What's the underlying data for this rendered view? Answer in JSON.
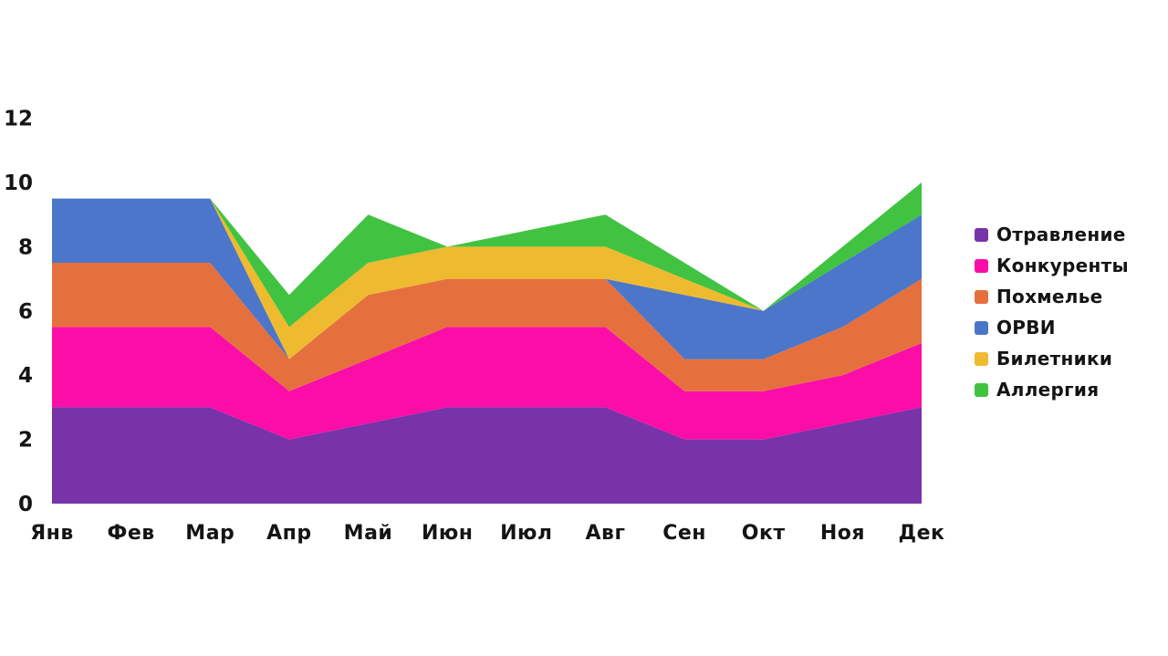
{
  "chart_data": {
    "type": "area",
    "stacked": true,
    "title": "",
    "xlabel": "",
    "ylabel": "",
    "categories": [
      "Янв",
      "Фев",
      "Мар",
      "Апр",
      "Май",
      "Июн",
      "Июл",
      "Авг",
      "Сен",
      "Окт",
      "Ноя",
      "Дек"
    ],
    "series": [
      {
        "name": "Отравление",
        "color": "#7833A8",
        "values": [
          3,
          3,
          3,
          2,
          2.5,
          3,
          3,
          3,
          2,
          2,
          2.5,
          3
        ]
      },
      {
        "name": "Конкуренты",
        "color": "#FB0DA8",
        "values": [
          2.5,
          2.5,
          2.5,
          1.5,
          2,
          2.5,
          2.5,
          2.5,
          1.5,
          1.5,
          1.5,
          2
        ]
      },
      {
        "name": "Похмелье",
        "color": "#E5703D",
        "values": [
          2,
          2,
          2,
          1,
          2,
          1.5,
          1.5,
          1.5,
          1,
          1,
          1.5,
          2
        ]
      },
      {
        "name": "ОРВИ",
        "color": "#4B76C9",
        "values": [
          2,
          2,
          2,
          0,
          0,
          0,
          0,
          0,
          2,
          1.5,
          2,
          2
        ]
      },
      {
        "name": "Билетники",
        "color": "#EEBA2F",
        "values": [
          0,
          0,
          0,
          1,
          1,
          1,
          1,
          1,
          0.5,
          0,
          0,
          0
        ]
      },
      {
        "name": "Аллергия",
        "color": "#41C341",
        "values": [
          0,
          0,
          0,
          1,
          1.5,
          0,
          0.5,
          1,
          0.5,
          0,
          0.5,
          1
        ]
      }
    ],
    "stack_totals": [
      9.5,
      9.5,
      9.5,
      6.5,
      9,
      8,
      8.5,
      9,
      7.5,
      6,
      8,
      10
    ],
    "ylim": [
      0,
      12
    ],
    "y_ticks": [
      0,
      2,
      4,
      6,
      8,
      10,
      12
    ],
    "grid": false,
    "legend_position": "right",
    "text_color": "#141414"
  }
}
